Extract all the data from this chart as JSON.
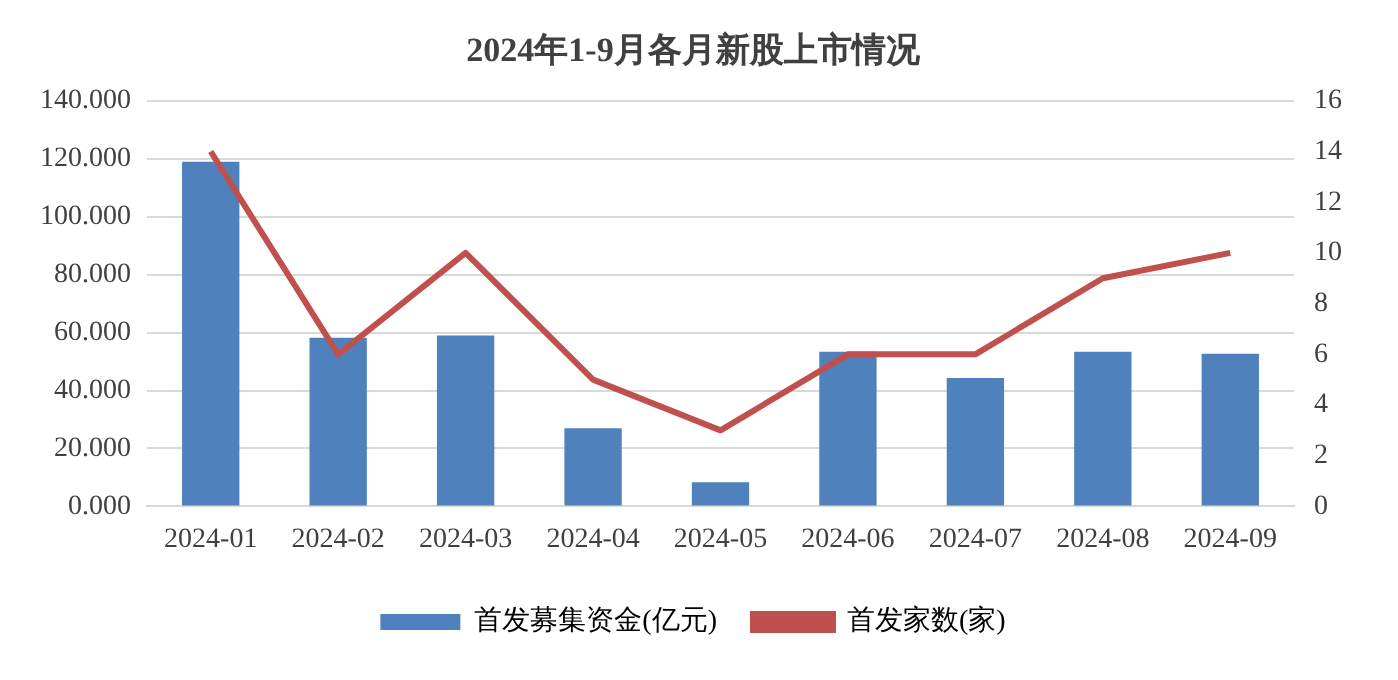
{
  "chart_data": {
    "type": "bar",
    "title": "2024年1-9月各月新股上市情况",
    "categories": [
      "2024-01",
      "2024-02",
      "2024-03",
      "2024-04",
      "2024-05",
      "2024-06",
      "2024-07",
      "2024-08",
      "2024-09"
    ],
    "series": [
      {
        "name": "首发募集资金(亿元)",
        "color": "#4f81bd",
        "values": [
          119,
          58.2,
          59,
          27,
          8.3,
          53.4,
          44.3,
          53.4,
          52.7
        ]
      },
      {
        "name": "首发家数(家)",
        "type": "line",
        "axis": "y2",
        "color": "#c0504d",
        "values": [
          14,
          6,
          10,
          5,
          3,
          6,
          6,
          9,
          10
        ]
      }
    ],
    "ylim": [
      0,
      140
    ],
    "yticks": [
      {
        "value": 0,
        "label": "0.000"
      },
      {
        "value": 20,
        "label": "20.000"
      },
      {
        "value": 40,
        "label": "40.000"
      },
      {
        "value": 60,
        "label": "60.000"
      },
      {
        "value": 80,
        "label": "80.000"
      },
      {
        "value": 100,
        "label": "100.000"
      },
      {
        "value": 120,
        "label": "120.000"
      },
      {
        "value": 140,
        "label": "140.000"
      }
    ],
    "y2lim": [
      0,
      16
    ],
    "y2ticks": [
      0,
      2,
      4,
      6,
      8,
      10,
      12,
      14,
      16
    ],
    "grid": "y",
    "legend": "bottom",
    "marker": "none"
  }
}
